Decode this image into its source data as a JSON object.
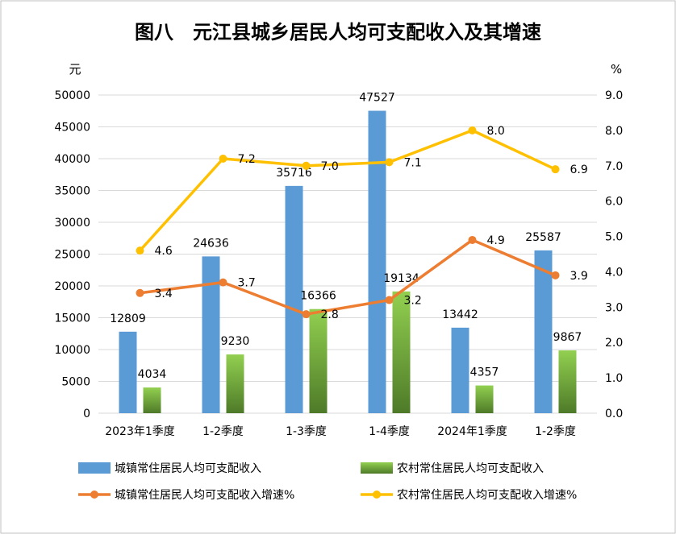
{
  "chart_data": {
    "type": "bar",
    "title": "图八　元江县城乡居民人均可支配收入及其增速",
    "y_left_unit": "元",
    "y_right_unit": "%",
    "categories": [
      "2023年1季度",
      "1-2季度",
      "1-3季度",
      "1-4季度",
      "2024年1季度",
      "1-2季度"
    ],
    "ylim_left": [
      0,
      50000
    ],
    "yticks_left": [
      "0",
      "5000",
      "10000",
      "15000",
      "20000",
      "25000",
      "30000",
      "35000",
      "40000",
      "45000",
      "50000"
    ],
    "ylim_right": [
      0,
      9
    ],
    "yticks_right": [
      "0.0",
      "1.0",
      "2.0",
      "3.0",
      "4.0",
      "5.0",
      "6.0",
      "7.0",
      "8.0",
      "9.0"
    ],
    "bar_series": [
      {
        "name": "城镇常住居民人均可支配收入",
        "values": [
          12809,
          24636,
          35716,
          47527,
          13442,
          25587
        ],
        "labels": [
          "12809",
          "24636",
          "35716",
          "47527",
          "13442",
          "25587"
        ]
      },
      {
        "name": "农村常住居民人均可支配收入",
        "values": [
          4034,
          9230,
          16366,
          19134,
          4357,
          9867
        ],
        "labels": [
          "4034",
          "9230",
          "16366",
          "19134",
          "4357",
          "9867"
        ]
      }
    ],
    "line_series": [
      {
        "name": "城镇常住居民人均可支配收入增速%",
        "values": [
          3.4,
          3.7,
          2.8,
          3.2,
          4.9,
          3.9
        ],
        "labels": [
          "3.4",
          "3.7",
          "2.8",
          "3.2",
          "4.9",
          "3.9"
        ]
      },
      {
        "name": "农村常住居民人均可支配收入增速%",
        "values": [
          4.6,
          7.2,
          7.0,
          7.1,
          8.0,
          6.9
        ],
        "labels": [
          "4.6",
          "7.2",
          "7.0",
          "7.1",
          "8.0",
          "6.9"
        ]
      }
    ],
    "colors": {
      "urban_bar": "#5B9BD5",
      "rural_bar_top": "#92D050",
      "rural_bar_bottom": "#4E7A28",
      "urban_line": "#ED7D31",
      "rural_line": "#FFC000",
      "grid": "#D9D9D9",
      "frame": "#BFBFBF",
      "text": "#000000"
    },
    "grid": true,
    "legend_position": "bottom"
  }
}
